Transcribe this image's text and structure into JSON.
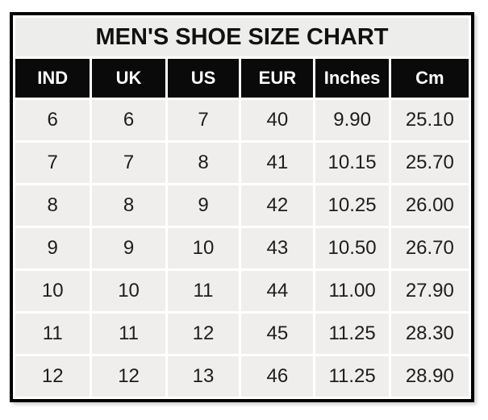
{
  "chart_data": {
    "type": "table",
    "title": "MEN'S SHOE SIZE CHART",
    "columns": [
      "IND",
      "UK",
      "US",
      "EUR",
      "Inches",
      "Cm"
    ],
    "rows": [
      [
        "6",
        "6",
        "7",
        "40",
        "9.90",
        "25.10"
      ],
      [
        "7",
        "7",
        "8",
        "41",
        "10.15",
        "25.70"
      ],
      [
        "8",
        "8",
        "9",
        "42",
        "10.25",
        "26.00"
      ],
      [
        "9",
        "9",
        "10",
        "43",
        "10.50",
        "26.70"
      ],
      [
        "10",
        "10",
        "11",
        "44",
        "11.00",
        "27.90"
      ],
      [
        "11",
        "11",
        "12",
        "45",
        "11.25",
        "28.30"
      ],
      [
        "12",
        "12",
        "13",
        "46",
        "11.25",
        "28.90"
      ]
    ],
    "layout": {
      "legend": "none",
      "grid": "white gap lines between cells",
      "header_style": "black background, white bold text",
      "title_position": "top, spanning all columns"
    }
  },
  "colors": {
    "table_border": "#000000",
    "title_background": "#ededec",
    "header_background": "#0a0a0a",
    "header_text": "#ffffff",
    "cell_background": "#f0eeed",
    "cell_text": "#1d1d1b",
    "gap_lines": "#ffffff",
    "page_background": "#ffffff"
  }
}
